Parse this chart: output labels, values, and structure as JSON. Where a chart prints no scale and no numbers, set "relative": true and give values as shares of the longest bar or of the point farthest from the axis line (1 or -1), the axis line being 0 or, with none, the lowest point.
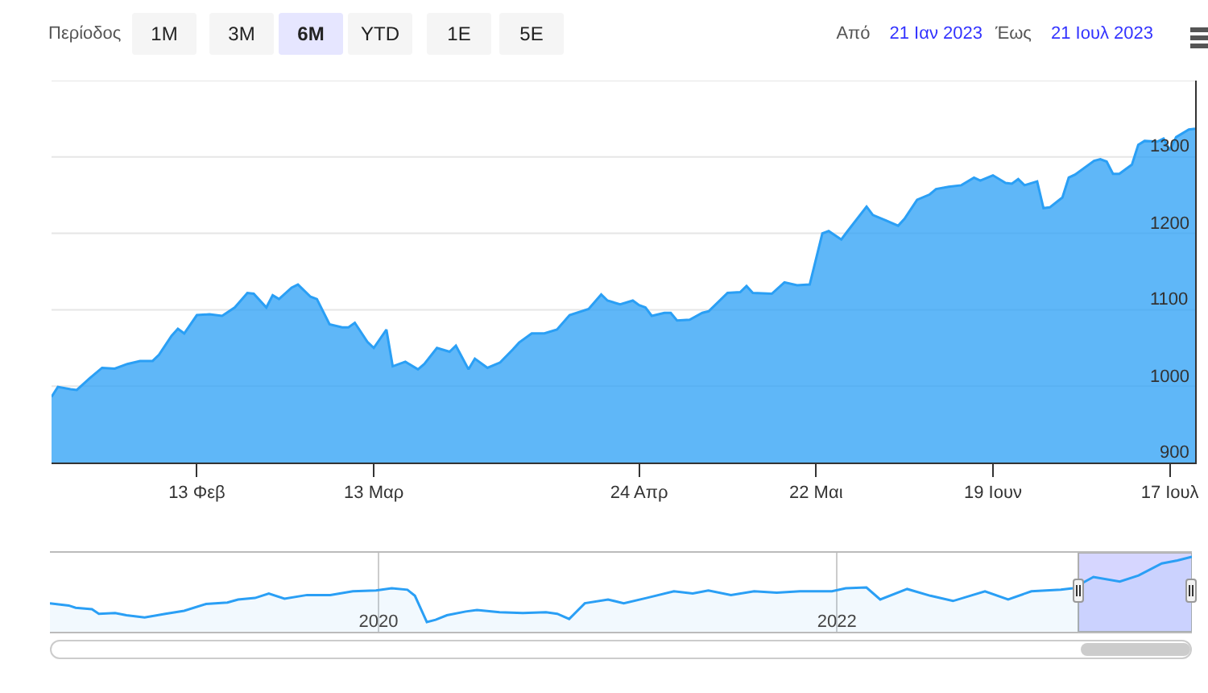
{
  "chart_data": [
    {
      "type": "area",
      "annotations": [
        "Περίοδος",
        "1M",
        "3M",
        "6M",
        "YTD",
        "1E",
        "5E",
        "Από",
        "21 Ιαν 2023",
        "Έως",
        "21 Ιουλ 2023"
      ],
      "xlim": [
        "2023-01-21",
        "2023-07-21"
      ],
      "xticks": [
        {
          "value": "2023-02-13",
          "label": "13 Φεβ"
        },
        {
          "value": "2023-03-13",
          "label": "13 Μαρ"
        },
        {
          "value": "2023-04-24",
          "label": "24 Απρ"
        },
        {
          "value": "2023-05-22",
          "label": "22 Μαι"
        },
        {
          "value": "2023-06-19",
          "label": "19 Ιουν"
        },
        {
          "value": "2023-07-17",
          "label": "17 Ιουλ"
        }
      ],
      "ylim": [
        900,
        1400
      ],
      "yticks": [
        900,
        1000,
        1100,
        1200,
        1300,
        {
          "value": 1400,
          "label": null
        }
      ],
      "grid": "y",
      "series": [
        {
          "color": "#2a9ff5",
          "x": [
            "2023-01-21",
            "2023-01-22",
            "2023-01-24",
            "2023-01-25",
            "2023-01-27",
            "2023-01-29",
            "2023-01-31",
            "2023-02-02",
            "2023-02-04",
            "2023-02-06",
            "2023-02-07",
            "2023-02-09",
            "2023-02-10",
            "2023-02-11",
            "2023-02-13",
            "2023-02-15",
            "2023-02-17",
            "2023-02-19",
            "2023-02-21",
            "2023-02-22",
            "2023-02-24",
            "2023-02-25",
            "2023-02-26",
            "2023-02-28",
            "2023-03-01",
            "2023-03-03",
            "2023-03-04",
            "2023-03-06",
            "2023-03-08",
            "2023-03-09",
            "2023-03-10",
            "2023-03-12",
            "2023-03-13",
            "2023-03-15",
            "2023-03-16",
            "2023-03-18",
            "2023-03-20",
            "2023-03-21",
            "2023-03-23",
            "2023-03-25",
            "2023-03-26",
            "2023-03-28",
            "2023-03-29",
            "2023-03-31",
            "2023-04-02",
            "2023-04-04",
            "2023-04-05",
            "2023-04-07",
            "2023-04-09",
            "2023-04-11",
            "2023-04-13",
            "2023-04-16",
            "2023-04-18",
            "2023-04-19",
            "2023-04-21",
            "2023-04-23",
            "2023-04-24",
            "2023-04-25",
            "2023-04-26",
            "2023-04-28",
            "2023-04-29",
            "2023-04-30",
            "2023-05-02",
            "2023-05-04",
            "2023-05-05",
            "2023-05-08",
            "2023-05-10",
            "2023-05-11",
            "2023-05-12",
            "2023-05-15",
            "2023-05-17",
            "2023-05-19",
            "2023-05-21",
            "2023-05-23",
            "2023-05-24",
            "2023-05-26",
            "2023-05-27",
            "2023-05-30",
            "2023-05-31",
            "2023-06-02",
            "2023-06-04",
            "2023-06-05",
            "2023-06-07",
            "2023-06-09",
            "2023-06-10",
            "2023-06-12",
            "2023-06-14",
            "2023-06-16",
            "2023-06-17",
            "2023-06-19",
            "2023-06-21",
            "2023-06-22",
            "2023-06-23",
            "2023-06-24",
            "2023-06-26",
            "2023-06-27",
            "2023-06-28",
            "2023-06-30",
            "2023-07-01",
            "2023-07-02",
            "2023-07-05",
            "2023-07-06",
            "2023-07-07",
            "2023-07-08",
            "2023-07-09",
            "2023-07-11",
            "2023-07-12",
            "2023-07-13",
            "2023-07-15",
            "2023-07-16",
            "2023-07-17",
            "2023-07-18",
            "2023-07-20",
            "2023-07-21"
          ],
          "values": [
            986,
            999,
            996,
            995,
            1010,
            1024,
            1023,
            1029,
            1033,
            1033,
            1041,
            1066,
            1075,
            1069,
            1093,
            1094,
            1092,
            1103,
            1122,
            1121,
            1103,
            1119,
            1114,
            1129,
            1133,
            1117,
            1114,
            1081,
            1077,
            1077,
            1083,
            1058,
            1050,
            1074,
            1026,
            1032,
            1022,
            1029,
            1050,
            1045,
            1053,
            1022,
            1036,
            1024,
            1031,
            1048,
            1057,
            1069,
            1069,
            1074,
            1093,
            1101,
            1120,
            1112,
            1107,
            1112,
            1106,
            1103,
            1092,
            1096,
            1096,
            1086,
            1087,
            1096,
            1098,
            1122,
            1123,
            1131,
            1122,
            1121,
            1136,
            1132,
            1133,
            1200,
            1203,
            1192,
            1203,
            1235,
            1224,
            1217,
            1210,
            1219,
            1244,
            1251,
            1258,
            1261,
            1263,
            1273,
            1269,
            1276,
            1266,
            1265,
            1271,
            1263,
            1268,
            1233,
            1234,
            1247,
            1273,
            1277,
            1295,
            1297,
            1294,
            1278,
            1278,
            1290,
            1316,
            1321,
            1320,
            1324,
            1309,
            1326,
            1336,
            1337
          ]
        }
      ]
    },
    {
      "type": "area",
      "relative": true,
      "grid": "x",
      "xlim": [
        "2018-07-26",
        "2023-07-21"
      ],
      "xticks": [
        "2020",
        "2022"
      ],
      "bands": [
        {
          "axis": "x",
          "from": "2023-01-21",
          "to": "2023-07-21",
          "color": "#ccccff"
        }
      ],
      "series": [
        {
          "color": "#2a9ff5",
          "x": [
            "2018-07-26",
            "2018-08-25",
            "2018-09-05",
            "2018-10-01",
            "2018-10-12",
            "2018-11-07",
            "2018-11-25",
            "2018-12-24",
            "2019-01-26",
            "2019-02-25",
            "2019-04-01",
            "2019-05-05",
            "2019-05-22",
            "2019-06-18",
            "2019-07-10",
            "2019-08-04",
            "2019-09-09",
            "2019-10-16",
            "2019-11-21",
            "2019-12-28",
            "2020-01-22",
            "2020-02-16",
            "2020-02-28",
            "2020-03-18",
            "2020-04-01",
            "2020-04-19",
            "2020-05-19",
            "2020-06-06",
            "2020-07-12",
            "2020-08-18",
            "2020-09-24",
            "2020-10-12",
            "2020-10-31",
            "2020-11-25",
            "2021-01-01",
            "2021-01-26",
            "2021-03-03",
            "2021-04-16",
            "2021-05-16",
            "2021-06-10",
            "2021-07-16",
            "2021-08-22",
            "2021-09-27",
            "2021-11-03",
            "2021-12-24",
            "2022-01-15",
            "2022-02-17",
            "2022-03-11",
            "2022-04-23",
            "2022-05-30",
            "2022-07-05",
            "2022-08-25",
            "2022-10-01",
            "2022-11-07",
            "2022-12-24",
            "2023-01-12",
            "2023-02-14",
            "2023-03-28",
            "2023-04-27",
            "2023-06-03",
            "2023-06-28",
            "2023-07-21"
          ],
          "values": [
            0.38,
            0.35,
            0.32,
            0.3,
            0.24,
            0.25,
            0.22,
            0.19,
            0.24,
            0.28,
            0.37,
            0.39,
            0.43,
            0.45,
            0.51,
            0.44,
            0.49,
            0.49,
            0.54,
            0.55,
            0.58,
            0.56,
            0.48,
            0.13,
            0.16,
            0.22,
            0.27,
            0.29,
            0.26,
            0.25,
            0.26,
            0.24,
            0.17,
            0.38,
            0.43,
            0.38,
            0.45,
            0.54,
            0.51,
            0.55,
            0.49,
            0.54,
            0.52,
            0.54,
            0.54,
            0.58,
            0.59,
            0.43,
            0.57,
            0.48,
            0.41,
            0.54,
            0.43,
            0.54,
            0.56,
            0.58,
            0.73,
            0.67,
            0.75,
            0.91,
            0.95,
            1.0
          ]
        }
      ]
    }
  ]
}
